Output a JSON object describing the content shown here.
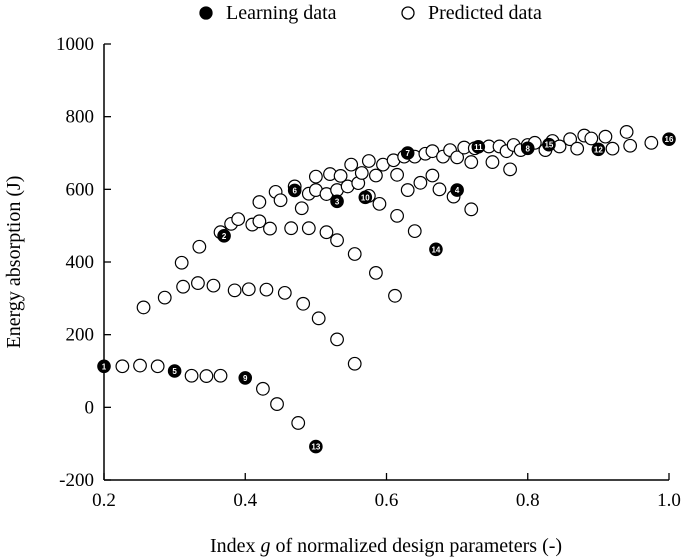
{
  "chart_data": {
    "type": "scatter",
    "title": "",
    "xlabel_prefix": "Index ",
    "xlabel_var": "g",
    "xlabel_suffix": " of normalized design parameters (-)",
    "ylabel": "Energy absorption (J)",
    "xlim": [
      0.2,
      1.0
    ],
    "ylim": [
      -200,
      1000
    ],
    "xticks": [
      0.2,
      0.4,
      0.6,
      0.8,
      1.0
    ],
    "xtick_labels": [
      "0.2",
      "0.4",
      "0.6",
      "0.8",
      "1.0"
    ],
    "yticks": [
      -200,
      0,
      200,
      400,
      600,
      800,
      1000
    ],
    "ytick_labels": [
      "-200",
      "0",
      "200",
      "400",
      "600",
      "800",
      "1000"
    ],
    "legend_position": "top-center",
    "series": [
      {
        "name": "Learning data",
        "marker": "filled-circle",
        "points": [
          {
            "x": 0.2,
            "y": 113,
            "label": "1"
          },
          {
            "x": 0.37,
            "y": 472,
            "label": "2"
          },
          {
            "x": 0.53,
            "y": 567,
            "label": "3"
          },
          {
            "x": 0.7,
            "y": 598,
            "label": "4"
          },
          {
            "x": 0.3,
            "y": 100,
            "label": "5"
          },
          {
            "x": 0.47,
            "y": 597,
            "label": "6"
          },
          {
            "x": 0.63,
            "y": 700,
            "label": "7"
          },
          {
            "x": 0.8,
            "y": 713,
            "label": "8"
          },
          {
            "x": 0.4,
            "y": 81,
            "label": "9"
          },
          {
            "x": 0.57,
            "y": 578,
            "label": "10"
          },
          {
            "x": 0.73,
            "y": 717,
            "label": "11"
          },
          {
            "x": 0.9,
            "y": 710,
            "label": "12"
          },
          {
            "x": 0.5,
            "y": -108,
            "label": "13"
          },
          {
            "x": 0.67,
            "y": 435,
            "label": "14"
          },
          {
            "x": 0.83,
            "y": 723,
            "label": "15"
          },
          {
            "x": 1.0,
            "y": 738,
            "label": "16"
          }
        ]
      },
      {
        "name": "Predicted data",
        "marker": "open-circle",
        "points": [
          {
            "x": 0.226,
            "y": 113
          },
          {
            "x": 0.251,
            "y": 115
          },
          {
            "x": 0.276,
            "y": 113
          },
          {
            "x": 0.324,
            "y": 87
          },
          {
            "x": 0.345,
            "y": 86
          },
          {
            "x": 0.365,
            "y": 87
          },
          {
            "x": 0.425,
            "y": 51
          },
          {
            "x": 0.445,
            "y": 9
          },
          {
            "x": 0.475,
            "y": -43
          },
          {
            "x": 0.256,
            "y": 275
          },
          {
            "x": 0.286,
            "y": 302
          },
          {
            "x": 0.312,
            "y": 332
          },
          {
            "x": 0.333,
            "y": 342
          },
          {
            "x": 0.355,
            "y": 335
          },
          {
            "x": 0.385,
            "y": 322
          },
          {
            "x": 0.405,
            "y": 325
          },
          {
            "x": 0.43,
            "y": 324
          },
          {
            "x": 0.456,
            "y": 315
          },
          {
            "x": 0.482,
            "y": 285
          },
          {
            "x": 0.504,
            "y": 245
          },
          {
            "x": 0.53,
            "y": 187
          },
          {
            "x": 0.555,
            "y": 120
          },
          {
            "x": 0.31,
            "y": 398
          },
          {
            "x": 0.335,
            "y": 442
          },
          {
            "x": 0.365,
            "y": 482
          },
          {
            "x": 0.38,
            "y": 505
          },
          {
            "x": 0.39,
            "y": 518
          },
          {
            "x": 0.41,
            "y": 503
          },
          {
            "x": 0.42,
            "y": 512
          },
          {
            "x": 0.435,
            "y": 492
          },
          {
            "x": 0.465,
            "y": 493
          },
          {
            "x": 0.49,
            "y": 493
          },
          {
            "x": 0.515,
            "y": 482
          },
          {
            "x": 0.53,
            "y": 460
          },
          {
            "x": 0.555,
            "y": 422
          },
          {
            "x": 0.585,
            "y": 370
          },
          {
            "x": 0.612,
            "y": 307
          },
          {
            "x": 0.42,
            "y": 565
          },
          {
            "x": 0.443,
            "y": 593
          },
          {
            "x": 0.45,
            "y": 570
          },
          {
            "x": 0.47,
            "y": 608
          },
          {
            "x": 0.48,
            "y": 548
          },
          {
            "x": 0.49,
            "y": 588
          },
          {
            "x": 0.5,
            "y": 598
          },
          {
            "x": 0.515,
            "y": 587
          },
          {
            "x": 0.53,
            "y": 598
          },
          {
            "x": 0.545,
            "y": 608
          },
          {
            "x": 0.56,
            "y": 617
          },
          {
            "x": 0.575,
            "y": 582
          },
          {
            "x": 0.59,
            "y": 560
          },
          {
            "x": 0.615,
            "y": 527
          },
          {
            "x": 0.64,
            "y": 485
          },
          {
            "x": 0.5,
            "y": 635
          },
          {
            "x": 0.52,
            "y": 642
          },
          {
            "x": 0.535,
            "y": 637
          },
          {
            "x": 0.55,
            "y": 668
          },
          {
            "x": 0.565,
            "y": 645
          },
          {
            "x": 0.575,
            "y": 678
          },
          {
            "x": 0.585,
            "y": 638
          },
          {
            "x": 0.595,
            "y": 668
          },
          {
            "x": 0.61,
            "y": 680
          },
          {
            "x": 0.615,
            "y": 640
          },
          {
            "x": 0.625,
            "y": 690
          },
          {
            "x": 0.63,
            "y": 598
          },
          {
            "x": 0.648,
            "y": 618
          },
          {
            "x": 0.665,
            "y": 638
          },
          {
            "x": 0.675,
            "y": 600
          },
          {
            "x": 0.695,
            "y": 580
          },
          {
            "x": 0.72,
            "y": 545
          },
          {
            "x": 0.64,
            "y": 690
          },
          {
            "x": 0.655,
            "y": 698
          },
          {
            "x": 0.665,
            "y": 705
          },
          {
            "x": 0.68,
            "y": 690
          },
          {
            "x": 0.69,
            "y": 708
          },
          {
            "x": 0.7,
            "y": 688
          },
          {
            "x": 0.71,
            "y": 715
          },
          {
            "x": 0.72,
            "y": 675
          },
          {
            "x": 0.725,
            "y": 713
          },
          {
            "x": 0.745,
            "y": 718
          },
          {
            "x": 0.75,
            "y": 675
          },
          {
            "x": 0.76,
            "y": 718
          },
          {
            "x": 0.77,
            "y": 705
          },
          {
            "x": 0.775,
            "y": 655
          },
          {
            "x": 0.78,
            "y": 722
          },
          {
            "x": 0.79,
            "y": 708
          },
          {
            "x": 0.8,
            "y": 722
          },
          {
            "x": 0.81,
            "y": 728
          },
          {
            "x": 0.825,
            "y": 708
          },
          {
            "x": 0.835,
            "y": 733
          },
          {
            "x": 0.845,
            "y": 718
          },
          {
            "x": 0.86,
            "y": 738
          },
          {
            "x": 0.87,
            "y": 712
          },
          {
            "x": 0.88,
            "y": 748
          },
          {
            "x": 0.89,
            "y": 740
          },
          {
            "x": 0.91,
            "y": 745
          },
          {
            "x": 0.92,
            "y": 712
          },
          {
            "x": 0.94,
            "y": 758
          },
          {
            "x": 0.945,
            "y": 720
          },
          {
            "x": 0.975,
            "y": 728
          }
        ]
      }
    ]
  }
}
